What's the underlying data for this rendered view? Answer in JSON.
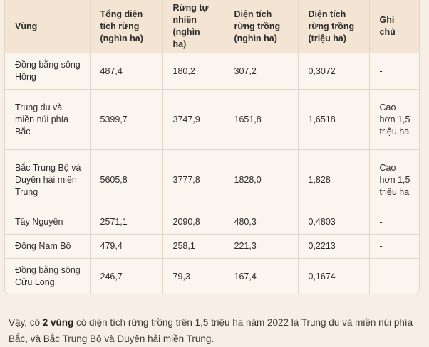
{
  "table": {
    "headers": [
      "Vùng",
      "Tổng diện tích rừng (nghìn ha)",
      "Rừng tự nhiên (nghìn ha)",
      "Diện tích rừng trồng (nghìn ha)",
      "Diện tích rừng trồng (triệu ha)",
      "Ghi chú"
    ],
    "rows": [
      [
        "Đồng bằng sông Hồng",
        "487,4",
        "180,2",
        "307,2",
        "0,3072",
        "-"
      ],
      [
        "Trung du và miền núi phía Bắc",
        "5399,7",
        "3747,9",
        "1651,8",
        "1,6518",
        "Cao hơn 1,5 triệu ha"
      ],
      [
        "Bắc Trung Bộ và Duyên hải miền Trung",
        "5605,8",
        "3777,8",
        "1828,0",
        "1,828",
        "Cao hơn 1,5 triệu ha"
      ],
      [
        "Tây Nguyên",
        "2571,1",
        "2090,8",
        "480,3",
        "0,4803",
        "-"
      ],
      [
        "Đông Nam Bộ",
        "479,4",
        "258,1",
        "221,3",
        "0,2213",
        "-"
      ],
      [
        "Đồng bằng sông Cửu Long",
        "246,7",
        "79,3",
        "167,4",
        "0,1674",
        "-"
      ]
    ]
  },
  "conclusion": {
    "prefix": "Vậy, có ",
    "bold": "2 vùng",
    "suffix": " có diện tích rừng trồng trên 1,5 triệu ha năm 2022 là Trung du và miền núi phía Bắc, và Bắc Trung Bộ và Duyên hải miền Trung."
  }
}
